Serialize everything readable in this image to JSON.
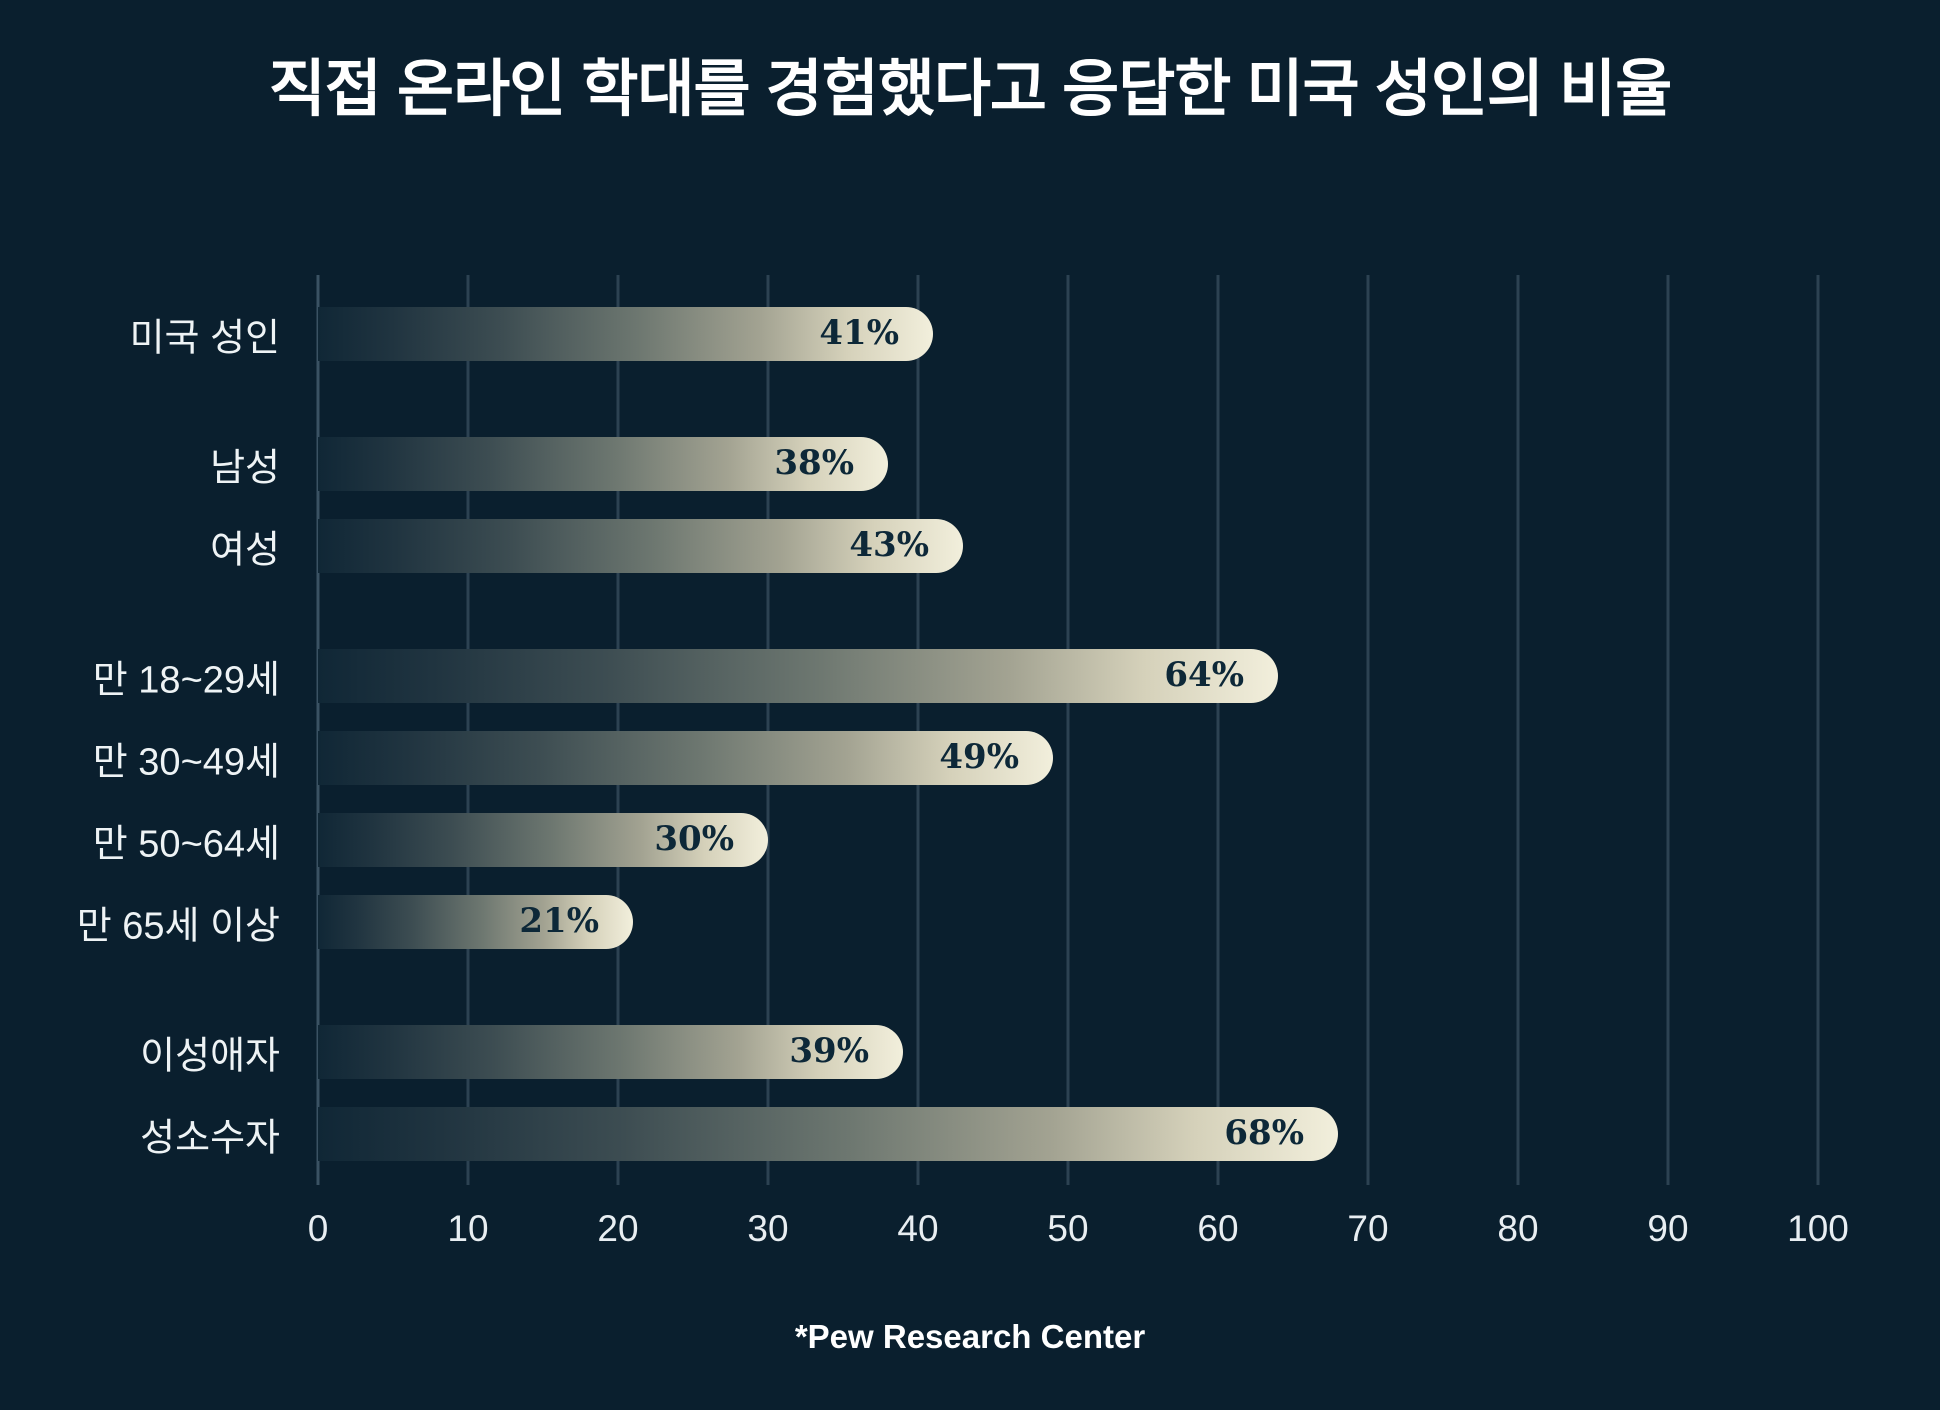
{
  "title": "직접 온라인 학대를 경험했다고 응답한 미국 성인의 비율",
  "source_note": "*Pew Research Center",
  "colors": {
    "background": "#0a1f2e",
    "gridline": "#2c4252",
    "bar_gradient_start": "#102736",
    "bar_gradient_end": "#f2efdc",
    "value_text": "#0d2838",
    "label_text": "#eef3f5",
    "title_text": "#ffffff"
  },
  "chart_data": {
    "type": "bar",
    "orientation": "horizontal",
    "title": "직접 온라인 학대를 경험했다고 응답한 미국 성인의 비율",
    "source_note": "*Pew Research Center",
    "categories": [
      "미국 성인",
      "남성",
      "여성",
      "만 18~29세",
      "만 30~49세",
      "만 50~64세",
      "만 65세 이상",
      "이성애자",
      "성소수자"
    ],
    "values": [
      41,
      38,
      43,
      64,
      49,
      30,
      21,
      39,
      68
    ],
    "value_labels": [
      "41%",
      "38%",
      "43%",
      "64%",
      "49%",
      "30%",
      "21%",
      "39%",
      "68%"
    ],
    "groups": [
      [
        0
      ],
      [
        1,
        2
      ],
      [
        3,
        4,
        5,
        6
      ],
      [
        7,
        8
      ]
    ],
    "x_ticks": [
      0,
      10,
      20,
      30,
      40,
      50,
      60,
      70,
      80,
      90,
      100
    ],
    "xlim": [
      0,
      100
    ],
    "grid": true,
    "legend": false,
    "xlabel": "",
    "ylabel": ""
  }
}
